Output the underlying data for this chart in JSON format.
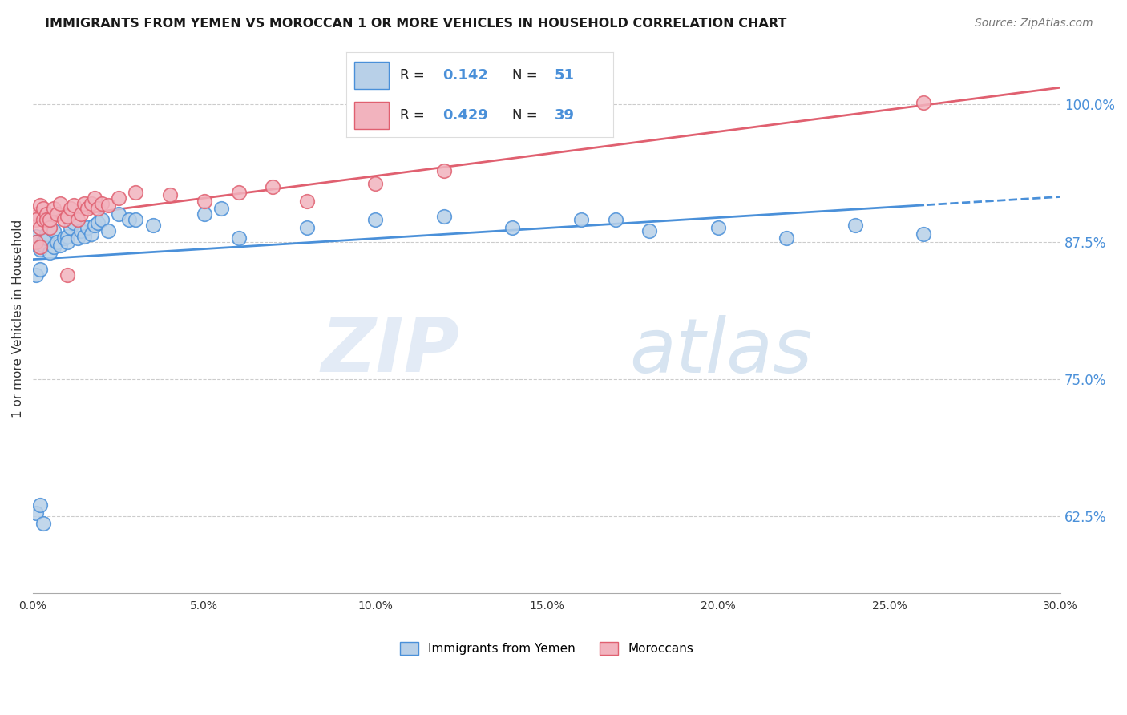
{
  "title": "IMMIGRANTS FROM YEMEN VS MOROCCAN 1 OR MORE VEHICLES IN HOUSEHOLD CORRELATION CHART",
  "source": "Source: ZipAtlas.com",
  "ylabel": "1 or more Vehicles in Household",
  "yticks": [
    62.5,
    75.0,
    87.5,
    100.0
  ],
  "ytick_labels": [
    "62.5%",
    "75.0%",
    "87.5%",
    "100.0%"
  ],
  "xmin": 0.0,
  "xmax": 0.3,
  "ymin": 0.555,
  "ymax": 1.055,
  "legend_entry1_label": "Immigrants from Yemen",
  "legend_entry2_label": "Moroccans",
  "r1": 0.142,
  "n1": 51,
  "r2": 0.429,
  "n2": 39,
  "color_blue": "#b8d0e8",
  "color_pink": "#f2b3be",
  "line_color_blue": "#4a90d9",
  "line_color_pink": "#e06070",
  "watermark_zip": "ZIP",
  "watermark_atlas": "atlas",
  "blue_scatter_x": [
    0.001,
    0.001,
    0.002,
    0.002,
    0.003,
    0.003,
    0.004,
    0.004,
    0.005,
    0.005,
    0.006,
    0.006,
    0.007,
    0.008,
    0.009,
    0.01,
    0.01,
    0.011,
    0.012,
    0.013,
    0.014,
    0.015,
    0.016,
    0.017,
    0.018,
    0.019,
    0.02,
    0.022,
    0.025,
    0.028,
    0.03,
    0.035,
    0.05,
    0.055,
    0.06,
    0.08,
    0.1,
    0.12,
    0.14,
    0.16,
    0.17,
    0.18,
    0.2,
    0.22,
    0.24,
    0.26,
    0.001,
    0.002,
    0.003,
    0.001,
    0.002
  ],
  "blue_scatter_y": [
    0.88,
    0.875,
    0.87,
    0.868,
    0.875,
    0.872,
    0.882,
    0.878,
    0.888,
    0.865,
    0.87,
    0.885,
    0.875,
    0.872,
    0.878,
    0.88,
    0.875,
    0.888,
    0.892,
    0.878,
    0.885,
    0.88,
    0.888,
    0.882,
    0.89,
    0.892,
    0.895,
    0.885,
    0.9,
    0.895,
    0.895,
    0.89,
    0.9,
    0.905,
    0.878,
    0.888,
    0.895,
    0.898,
    0.888,
    0.895,
    0.895,
    0.885,
    0.888,
    0.878,
    0.89,
    0.882,
    0.628,
    0.635,
    0.618,
    0.845,
    0.85
  ],
  "pink_scatter_x": [
    0.001,
    0.001,
    0.002,
    0.002,
    0.003,
    0.003,
    0.004,
    0.004,
    0.005,
    0.005,
    0.006,
    0.007,
    0.008,
    0.009,
    0.01,
    0.011,
    0.012,
    0.013,
    0.014,
    0.015,
    0.016,
    0.017,
    0.018,
    0.019,
    0.02,
    0.022,
    0.025,
    0.03,
    0.04,
    0.05,
    0.06,
    0.07,
    0.08,
    0.1,
    0.12,
    0.26,
    0.001,
    0.002,
    0.01
  ],
  "pink_scatter_y": [
    0.9,
    0.895,
    0.908,
    0.888,
    0.905,
    0.895,
    0.9,
    0.895,
    0.888,
    0.895,
    0.905,
    0.9,
    0.91,
    0.895,
    0.898,
    0.905,
    0.908,
    0.895,
    0.9,
    0.91,
    0.905,
    0.91,
    0.915,
    0.905,
    0.91,
    0.908,
    0.915,
    0.92,
    0.918,
    0.912,
    0.92,
    0.925,
    0.912,
    0.928,
    0.94,
    1.002,
    0.875,
    0.87,
    0.845
  ]
}
